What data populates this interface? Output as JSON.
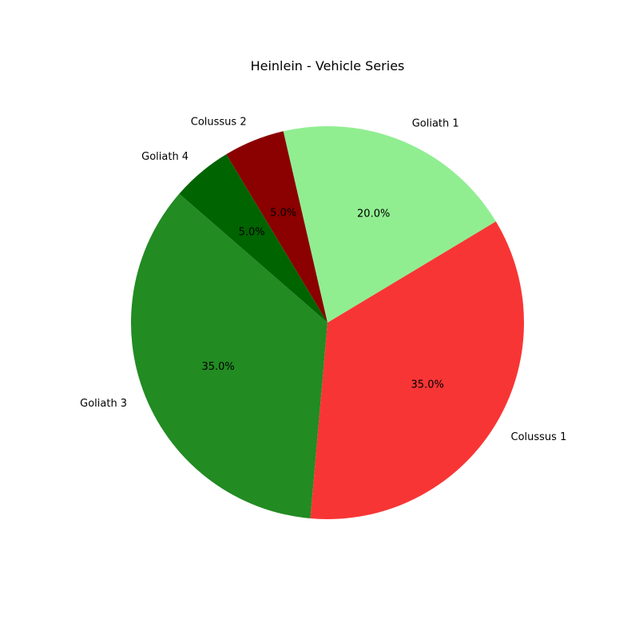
{
  "chart_data": {
    "type": "pie",
    "title": "Heinlein - Vehicle Series",
    "slices": [
      {
        "label": "Goliath 1",
        "value": 20,
        "pct_label": "20.0%",
        "color": "#90ee90"
      },
      {
        "label": "Colussus 2",
        "value": 5,
        "pct_label": "5.0%",
        "color": "#8b0000"
      },
      {
        "label": "Goliath 4",
        "value": 5,
        "pct_label": "5.0%",
        "color": "#006400"
      },
      {
        "label": "Goliath 3",
        "value": 35,
        "pct_label": "35.0%",
        "color": "#228b22"
      },
      {
        "label": "Colussus 1",
        "value": 35,
        "pct_label": "35.0%",
        "color": "#f83535"
      }
    ],
    "start_angle_deg": 31,
    "direction": "counterclockwise",
    "legend": "none"
  }
}
